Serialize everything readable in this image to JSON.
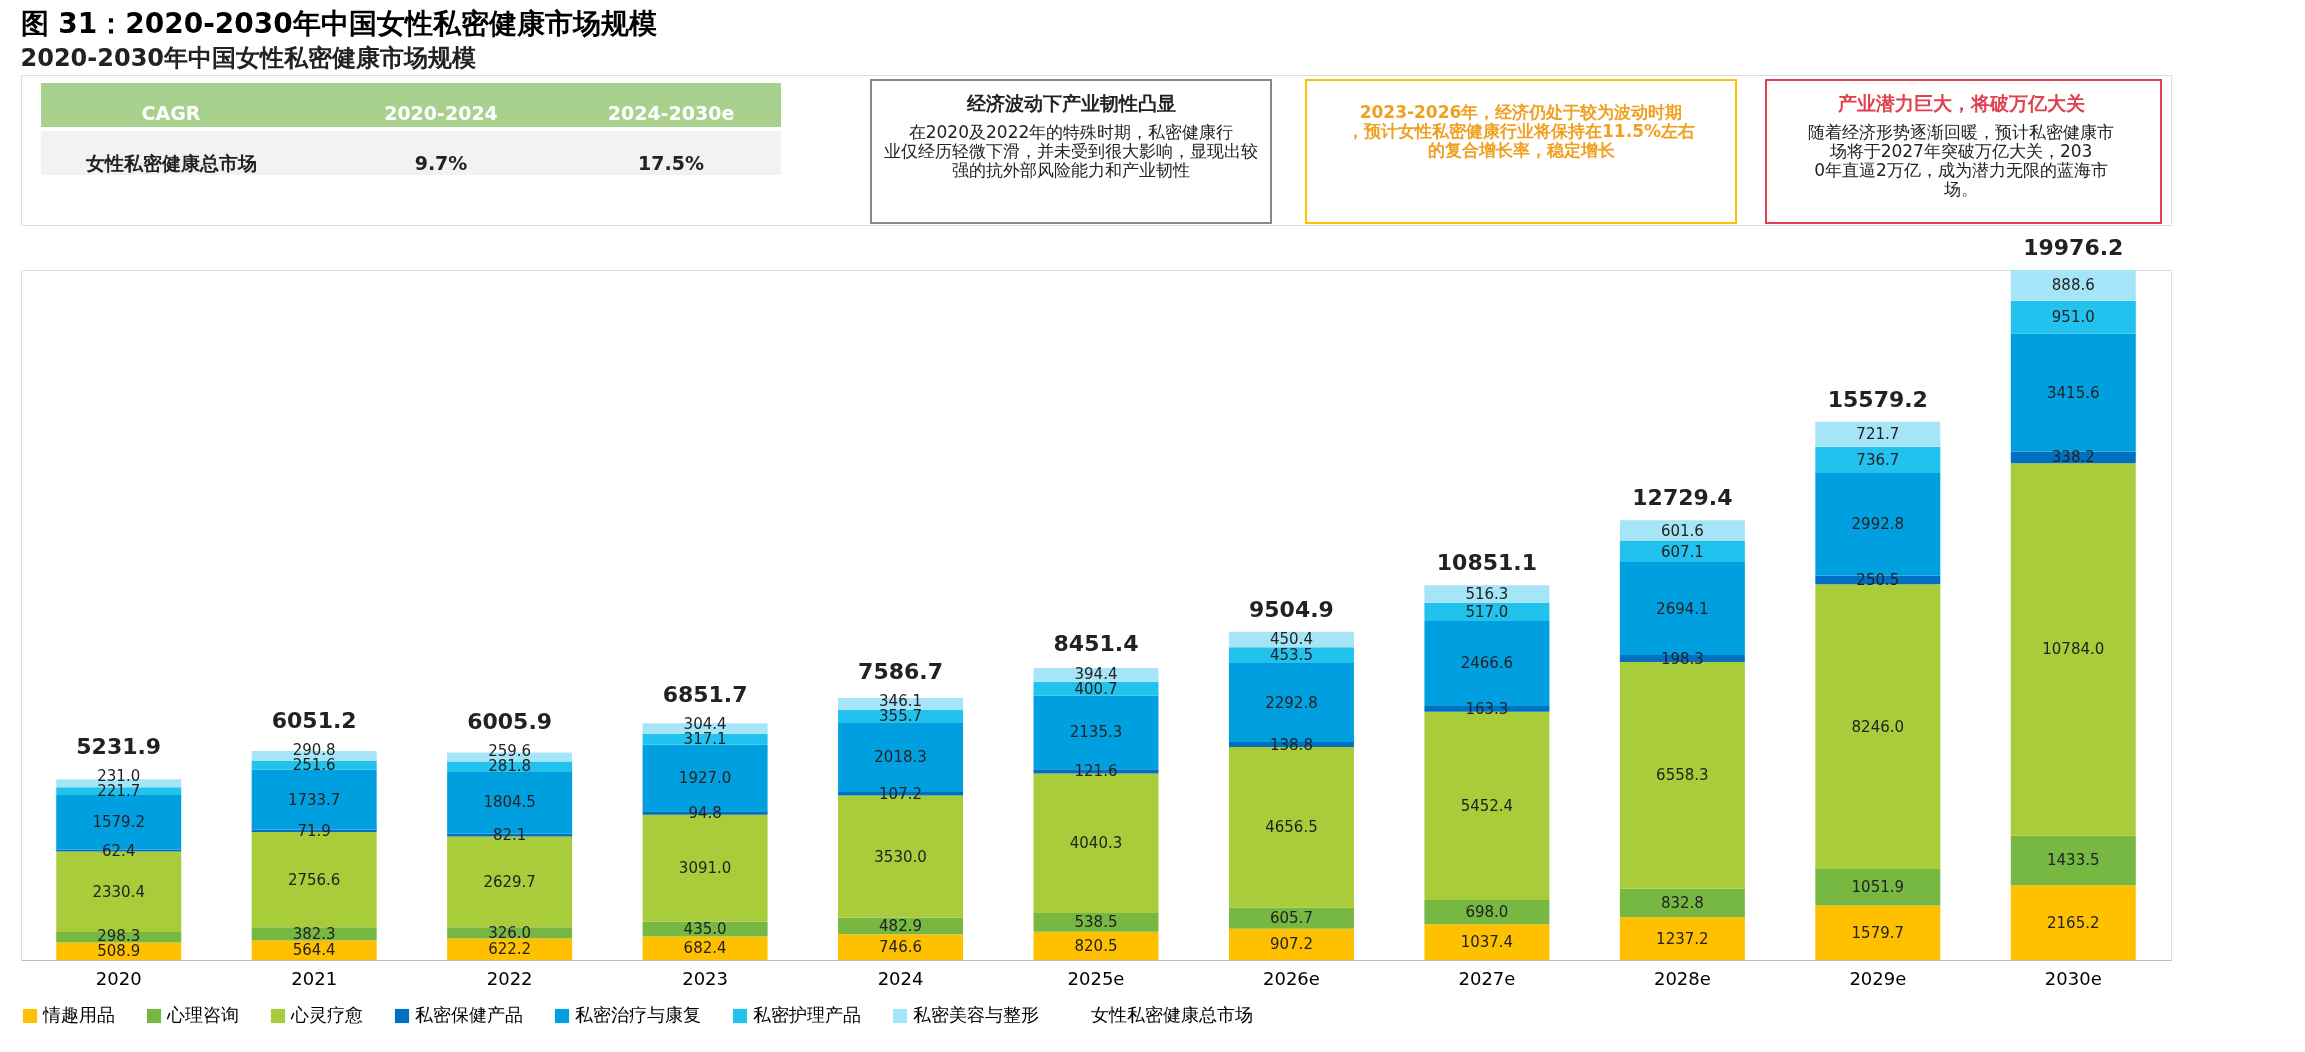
{
  "chart_data": {
    "type": "bar",
    "stacked": true,
    "legend": "bottom",
    "title": "图 31：2020-2030年中国女性私密健康市场规模",
    "subtitle": "2020-2030年中国女性私密健康市场规模",
    "categories": [
      "2020",
      "2021",
      "2022",
      "2023",
      "2024",
      "2025e",
      "2026e",
      "2027e",
      "2028e",
      "2029e",
      "2030e"
    ],
    "series": [
      {
        "name": "情趣用品",
        "color": "#ffc000",
        "values": [
          508.9,
          564.4,
          622.2,
          682.4,
          746.6,
          820.5,
          907.2,
          1037.4,
          1237.2,
          1579.7,
          2165.2
        ],
        "value_labels": [
          "508.9",
          "564.4",
          "622.2",
          "682.4",
          "746.6",
          "820.5",
          "907.2",
          "1037.4",
          "1237.2",
          "1579.7",
          "2165.2"
        ]
      },
      {
        "name": "心理咨询",
        "color": "#77b843",
        "values": [
          298.3,
          382.3,
          326.0,
          435.0,
          482.9,
          538.5,
          605.7,
          698.0,
          832.8,
          1051.9,
          1433.5
        ],
        "value_labels": [
          "298.3",
          "382.3",
          "326.0",
          "435.0",
          "482.9",
          "538.5",
          "605.7",
          "698.0",
          "832.8",
          "1051.9",
          "1433.5"
        ]
      },
      {
        "name": "心灵疗愈",
        "color": "#a9cd3a",
        "values": [
          2330.4,
          2756.6,
          2629.7,
          3091.0,
          3530.0,
          4040.3,
          4656.5,
          5452.4,
          6558.3,
          8246.0,
          10784.0
        ],
        "value_labels": [
          "2330.4",
          "2756.6",
          "2629.7",
          "3091.0",
          "3530.0",
          "4040.3",
          "4656.5",
          "5452.4",
          "6558.3",
          "8246.0",
          "10784.0"
        ]
      },
      {
        "name": "私密保健产品",
        "color": "#0070c0",
        "values": [
          62.4,
          71.9,
          82.1,
          94.8,
          107.2,
          121.6,
          138.8,
          163.3,
          198.3,
          250.5,
          338.2
        ],
        "value_labels": [
          "62.4",
          "71.9",
          "82.1",
          "94.8",
          "107.2",
          "121.6",
          "138.8",
          "163.3",
          "198.3",
          "250.5",
          "338.2"
        ]
      },
      {
        "name": "私密治疗与康复",
        "color": "#00a0e0",
        "values": [
          1579.2,
          1733.7,
          1804.5,
          1927.0,
          2018.3,
          2135.3,
          2292.8,
          2466.6,
          2694.1,
          2992.8,
          3415.6
        ],
        "value_labels": [
          "1579.2",
          "1733.7",
          "1804.5",
          "1927.0",
          "2018.3",
          "2135.3",
          "2292.8",
          "2466.6",
          "2694.1",
          "2992.8",
          "3415.6"
        ]
      },
      {
        "name": "私密护理产品",
        "color": "#22c2ee",
        "values": [
          221.7,
          251.6,
          281.8,
          317.1,
          355.7,
          400.7,
          453.5,
          517.0,
          607.1,
          736.7,
          951.0
        ],
        "value_labels": [
          "221.7",
          "251.6",
          "281.8",
          "317.1",
          "355.7",
          "400.7",
          "453.5",
          "517.0",
          "607.1",
          "736.7",
          "951.0"
        ]
      },
      {
        "name": "私密美容与整形",
        "color": "#a6e4f7",
        "values": [
          231.0,
          290.8,
          259.6,
          304.4,
          346.1,
          394.4,
          450.4,
          516.3,
          601.6,
          721.7,
          888.6
        ],
        "value_labels": [
          "231.0",
          "290.8",
          "259.6",
          "304.4",
          "346.1",
          "394.4",
          "450.4",
          "516.3",
          "601.6",
          "721.7",
          "888.6"
        ]
      }
    ],
    "totals": [
      "5231.9",
      "6051.2",
      "6005.9",
      "6851.7",
      "7586.7",
      "8451.4",
      "9504.9",
      "10851.1",
      "12729.4",
      "15579.2",
      "19976.2"
    ],
    "annotations": [
      "女性私密健康总市场",
      "CAGR",
      "2020-2024",
      "2024-2030e",
      "女性私密健康总市场",
      "9.7%",
      "17.5%",
      "经济波动下产业韧性凸显",
      "在2020及2022年的特殊时期，私密健康行业仅经历轻微下滑，并未受到很大影响，显现出较强的抗外部风险能力和产业韧性",
      "2023-2026年，经济仍处于较为波动时期，预计女性私密健康行业将保持在11.5%左右的复合增长率，稳定增长",
      "产业潜力巨大，将破万亿大关",
      "随着经济形势逐渐回暖，预计私密健康市场将于2027年突破万亿大关，2030年直逼2万亿，成为潜力无限的蓝海市场。"
    ]
  }
}
